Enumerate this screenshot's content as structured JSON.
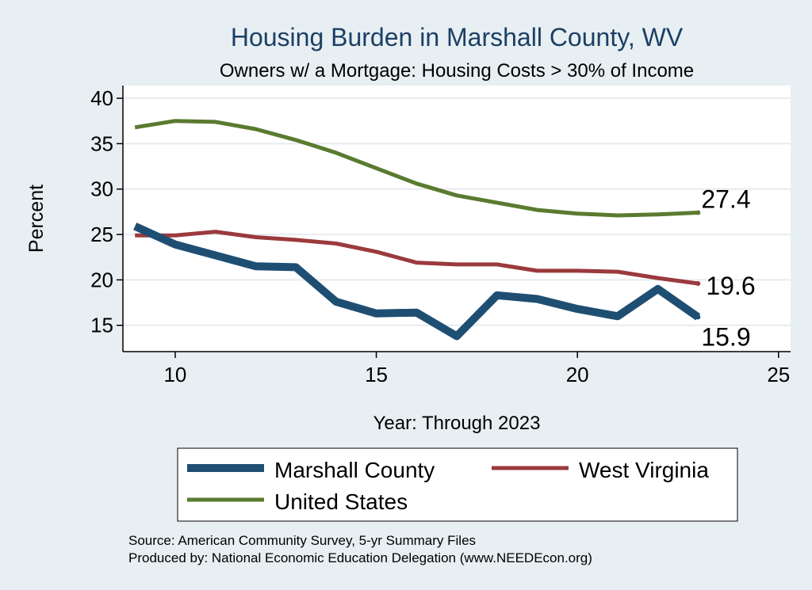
{
  "chart_data": {
    "type": "line",
    "title": "Housing Burden in Marshall County, WV",
    "subtitle": "Owners w/ a Mortgage: Housing Costs > 30% of Income",
    "xlabel": "Year: Through 2023",
    "ylabel": "Percent",
    "xlim": [
      8.7,
      25.3
    ],
    "ylim": [
      12.1,
      41.4
    ],
    "x_ticks": [
      10,
      15,
      20,
      25
    ],
    "y_ticks": [
      15,
      20,
      25,
      30,
      35,
      40
    ],
    "grid": true,
    "x": [
      9,
      10,
      11,
      12,
      13,
      14,
      15,
      16,
      17,
      18,
      19,
      20,
      21,
      22,
      23
    ],
    "series": [
      {
        "name": "Marshall County",
        "color": "#1f4e73",
        "values": [
          25.9,
          23.9,
          22.7,
          21.5,
          21.4,
          17.6,
          16.3,
          16.4,
          13.8,
          18.3,
          17.9,
          16.8,
          16.0,
          19.0,
          15.9
        ],
        "end_label": "15.9"
      },
      {
        "name": "West Virginia",
        "color": "#9b3a3c",
        "values": [
          24.9,
          24.9,
          25.3,
          24.7,
          24.4,
          24.0,
          23.1,
          21.9,
          21.7,
          21.7,
          21.0,
          21.0,
          20.9,
          20.2,
          19.6
        ],
        "end_label": "19.6"
      },
      {
        "name": "United States",
        "color": "#5a7b2f",
        "values": [
          36.8,
          37.5,
          37.4,
          36.6,
          35.4,
          34.0,
          32.3,
          30.6,
          29.3,
          28.5,
          27.7,
          27.3,
          27.1,
          27.2,
          27.4
        ],
        "end_label": "27.4"
      }
    ],
    "legend": {
      "position": "bottom"
    },
    "notes": [
      "Source: American Community Survey, 5-yr Summary Files",
      "Produced by: National Economic Education Delegation (www.NEEDEcon.org)"
    ]
  }
}
